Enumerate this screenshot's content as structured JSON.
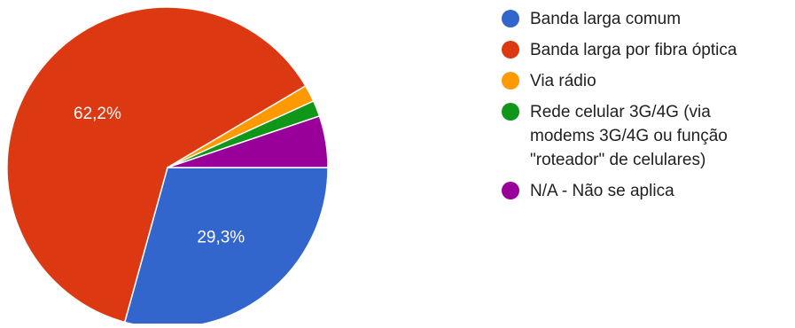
{
  "chart_data": {
    "type": "pie",
    "legend_position": "right",
    "slices": [
      {
        "label": "Banda larga comum",
        "value": 29.3,
        "color": "#3366cc",
        "data_label": "29,3%"
      },
      {
        "label": "Banda larga por fibra óptica",
        "value": 62.2,
        "color": "#dc3912",
        "data_label": "62,2%"
      },
      {
        "label": "Via rádio",
        "value": 1.7,
        "color": "#ff9900",
        "data_label": ""
      },
      {
        "label": "Rede celular 3G/4G (via modems 3G/4G ou função \"roteador\" de celulares)",
        "value": 1.6,
        "color": "#109618",
        "data_label": ""
      },
      {
        "label": "N/A - Não se aplica",
        "value": 5.2,
        "color": "#990099",
        "data_label": ""
      }
    ]
  }
}
